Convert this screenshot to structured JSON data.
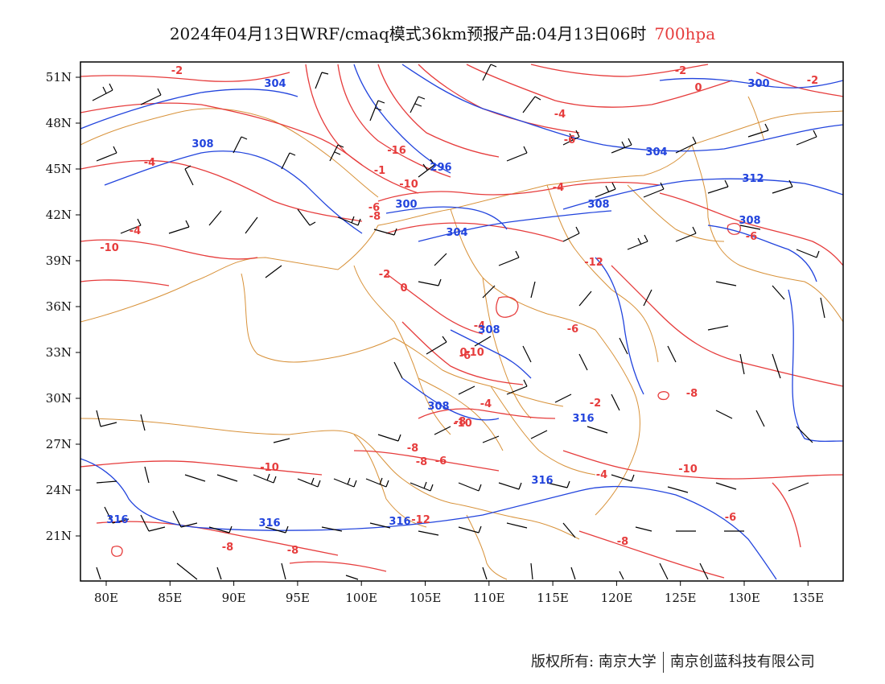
{
  "title": {
    "main": "2024年04月13日WRF/cmaq模式36km预报产品:04月13日06时",
    "level": "700hpa"
  },
  "axes": {
    "lat_labels": [
      "51N",
      "48N",
      "45N",
      "42N",
      "39N",
      "36N",
      "33N",
      "30N",
      "27N",
      "24N",
      "21N"
    ],
    "lon_labels": [
      "80E",
      "85E",
      "90E",
      "95E",
      "100E",
      "105E",
      "110E",
      "115E",
      "120E",
      "125E",
      "130E",
      "135E"
    ]
  },
  "colors": {
    "temperature": "#e63c3c",
    "geopotential": "#2244dd",
    "borders": "#d8923a",
    "wind": "#000000"
  },
  "contour_labels": {
    "temperature": [
      "-2",
      "-2",
      "0",
      "-2",
      "-4",
      "-16",
      "-10",
      "-1",
      "-6",
      "-8",
      "-4",
      "-4",
      "-2",
      "0",
      "-4",
      "-6",
      "-6",
      "-4",
      "-2",
      "-8",
      "-8",
      "-6",
      "-8",
      "-8",
      "-10",
      "-10",
      "-12",
      "-4",
      "-6",
      "-4",
      "-6",
      "-8",
      "-6",
      "-8",
      "-8",
      "-10",
      "-10",
      "0",
      "-12",
      "-10"
    ],
    "geopotential": [
      "304",
      "300",
      "308",
      "296",
      "300",
      "304",
      "304",
      "308",
      "308",
      "312",
      "308",
      "308",
      "316",
      "316",
      "316",
      "316",
      "316"
    ]
  },
  "footer": {
    "copyright": "版权所有: 南京大学",
    "company": "南京创蓝科技有限公司"
  }
}
